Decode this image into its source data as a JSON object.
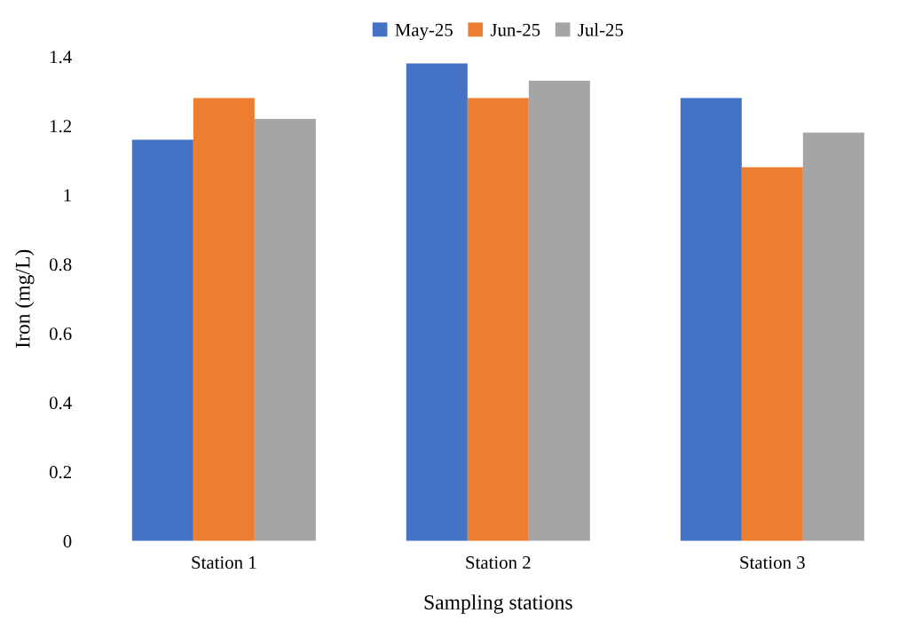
{
  "chart_data": {
    "type": "bar",
    "xlabel": "Sampling stations",
    "ylabel": "Iron (mg/L)",
    "categories": [
      "Station 1",
      "Station 2",
      "Station 3"
    ],
    "series": [
      {
        "name": "May-25",
        "color": "#4472c4",
        "values": [
          1.16,
          1.38,
          1.28
        ]
      },
      {
        "name": "Jun-25",
        "color": "#ed7d31",
        "values": [
          1.28,
          1.28,
          1.08
        ]
      },
      {
        "name": "Jul-25",
        "color": "#a5a5a5",
        "values": [
          1.22,
          1.33,
          1.18
        ]
      }
    ],
    "ylim": [
      0,
      1.4
    ],
    "yticks": [
      0,
      0.2,
      0.4,
      0.6,
      0.8,
      1,
      1.2,
      1.4
    ],
    "grid": false,
    "legend": "top"
  }
}
